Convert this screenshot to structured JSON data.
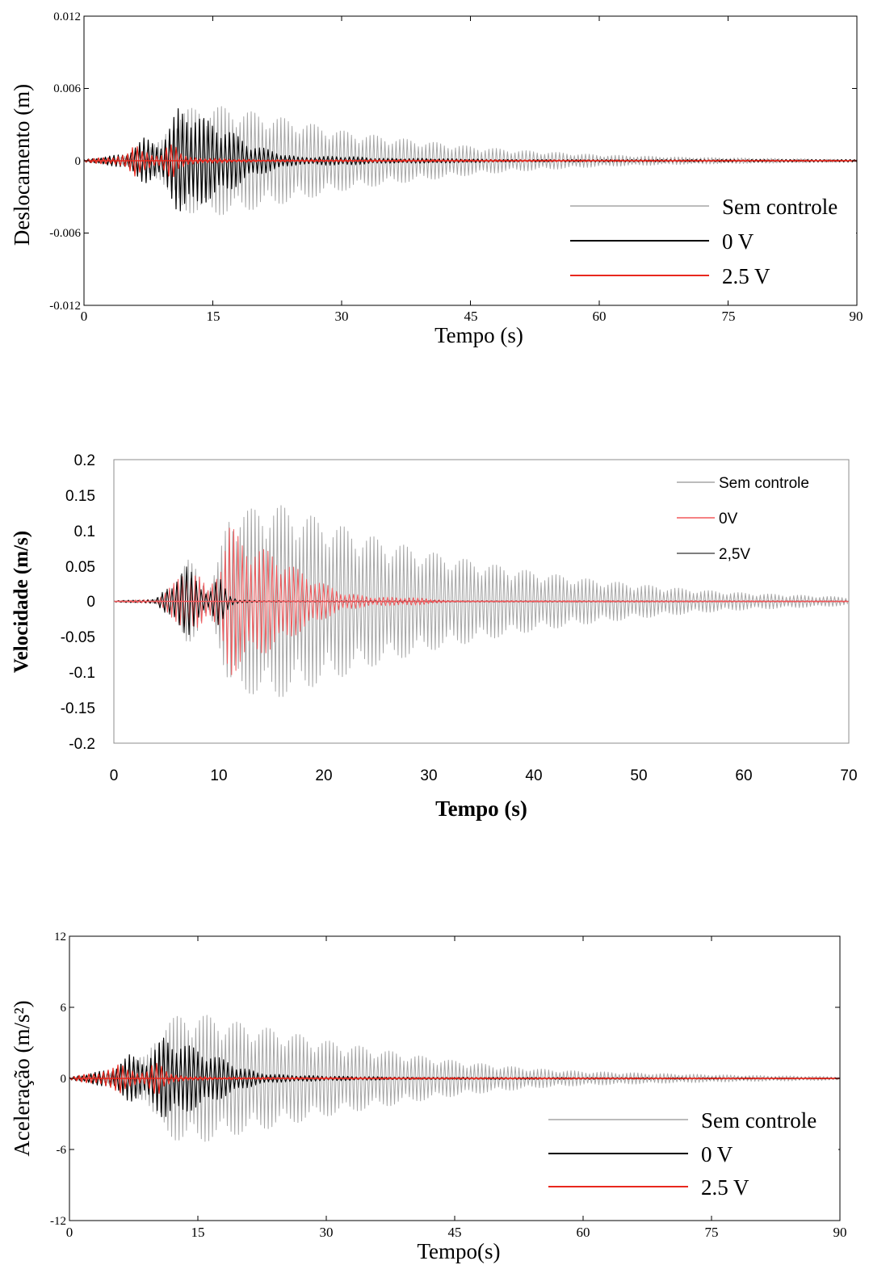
{
  "colors": {
    "sem_controle": "#a6a6a6",
    "zero_v": "#000000",
    "red": "#e8281e",
    "vel_red": "#f2585b"
  },
  "chart_data": [
    {
      "type": "line",
      "xlabel": "Tempo (s)",
      "ylabel": "Deslocamento (m)",
      "xlim": [
        0,
        90
      ],
      "ylim": [
        -0.012,
        0.012
      ],
      "x_ticks": [
        "0",
        "15",
        "30",
        "45",
        "60",
        "75",
        "90"
      ],
      "y_ticks": [
        "0.012",
        "0.006",
        "0",
        "-0.006",
        "-0.012"
      ],
      "legend_position": "bottom-right",
      "series": [
        {
          "name": "Sem controle",
          "color": "#a6a6a6",
          "x": [
            0,
            5,
            7,
            9,
            10,
            11,
            13,
            15,
            18,
            20,
            25,
            30,
            35,
            40,
            45,
            50,
            55,
            60,
            70,
            80,
            90
          ],
          "amplitude": [
            0.0001,
            0.0004,
            0.0012,
            0.0016,
            0.003,
            0.0042,
            0.0044,
            0.0046,
            0.0043,
            0.004,
            0.0033,
            0.0025,
            0.002,
            0.0016,
            0.0012,
            0.0009,
            0.0007,
            0.0005,
            0.0003,
            0.0002,
            0.0001
          ]
        },
        {
          "name": "0 V",
          "color": "#000000",
          "x": [
            0,
            5,
            7,
            9,
            10,
            11,
            12,
            13,
            15,
            17,
            19,
            22,
            25,
            30,
            35,
            40,
            50,
            90
          ],
          "amplitude": [
            0.0001,
            0.0006,
            0.0019,
            0.0014,
            0.0028,
            0.0045,
            0.0043,
            0.0038,
            0.0032,
            0.0025,
            0.0015,
            0.0008,
            0.0003,
            0.0004,
            0.0002,
            0.0002,
            0.0001,
            0.0001
          ]
        },
        {
          "name": "2.5 V",
          "color": "#e8281e",
          "x": [
            0,
            5,
            6,
            7,
            8,
            9,
            10,
            10.5,
            11,
            12,
            15,
            20,
            30,
            90
          ],
          "amplitude": [
            0.0001,
            0.0005,
            0.0015,
            0.0011,
            0.0004,
            0.0004,
            0.0018,
            0.0021,
            0.0008,
            0.0003,
            0.0002,
            0.0001,
            0.0001,
            5e-05
          ]
        }
      ]
    },
    {
      "type": "line",
      "xlabel": "Tempo (s)",
      "ylabel": "Velocidade (m/s)",
      "xlim": [
        0,
        70
      ],
      "ylim": [
        -0.2,
        0.2
      ],
      "x_ticks": [
        "0",
        "10",
        "20",
        "30",
        "40",
        "50",
        "60",
        "70"
      ],
      "y_ticks": [
        "0.2",
        "0.15",
        "0.1",
        "0.05",
        "0",
        "-0.05",
        "-0.1",
        "-0.15",
        "-0.2"
      ],
      "legend_position": "top-right",
      "series": [
        {
          "name": "Sem controle",
          "color": "#a6a6a6",
          "x": [
            0,
            4,
            5,
            6,
            7,
            8,
            9,
            10,
            11,
            12,
            13,
            15,
            17,
            20,
            25,
            30,
            35,
            40,
            45,
            50,
            55,
            60,
            65,
            70
          ],
          "amplitude": [
            0.001,
            0.003,
            0.015,
            0.035,
            0.06,
            0.045,
            0.015,
            0.06,
            0.13,
            0.135,
            0.13,
            0.14,
            0.13,
            0.115,
            0.09,
            0.07,
            0.055,
            0.042,
            0.032,
            0.024,
            0.017,
            0.012,
            0.009,
            0.006
          ]
        },
        {
          "name": "0V",
          "color": "#f2585b",
          "x": [
            0,
            4,
            5,
            6,
            7,
            8,
            9,
            10,
            11,
            12,
            13,
            15,
            17,
            20,
            22,
            25,
            28,
            30,
            32,
            35,
            70
          ],
          "amplitude": [
            0.001,
            0.003,
            0.015,
            0.03,
            0.05,
            0.04,
            0.015,
            0.05,
            0.11,
            0.09,
            0.08,
            0.07,
            0.05,
            0.025,
            0.012,
            0.006,
            0.006,
            0.004,
            0.001,
            0.001,
            0.001
          ]
        },
        {
          "name": "2,5V",
          "color": "#000000",
          "x": [
            0,
            4,
            5,
            6,
            7,
            8,
            9,
            10,
            11,
            12,
            15,
            70
          ],
          "amplitude": [
            0.001,
            0.003,
            0.02,
            0.035,
            0.05,
            0.03,
            0.01,
            0.035,
            0.01,
            0.002,
            0.001,
            0.0005
          ]
        }
      ]
    },
    {
      "type": "line",
      "xlabel": "Tempo(s)",
      "ylabel": "Aceleração (m/s²)",
      "xlim": [
        0,
        90
      ],
      "ylim": [
        -12,
        12
      ],
      "x_ticks": [
        "0",
        "15",
        "30",
        "45",
        "60",
        "75",
        "90"
      ],
      "y_ticks": [
        "12",
        "6",
        "0",
        "-6",
        "-12"
      ],
      "legend_position": "bottom-right",
      "series": [
        {
          "name": "Sem controle",
          "color": "#a6a6a6",
          "x": [
            0,
            5,
            7,
            9,
            10,
            11,
            13,
            15,
            18,
            20,
            25,
            30,
            35,
            40,
            45,
            50,
            55,
            60,
            70,
            80,
            90
          ],
          "amplitude": [
            0.1,
            0.5,
            2.0,
            1.8,
            3.5,
            5.0,
            5.3,
            5.5,
            5.0,
            4.7,
            4.0,
            3.2,
            2.6,
            2.0,
            1.5,
            1.1,
            0.8,
            0.6,
            0.4,
            0.25,
            0.15
          ]
        },
        {
          "name": "0 V",
          "color": "#000000",
          "x": [
            0,
            5,
            7,
            9,
            10,
            11,
            12,
            13,
            15,
            18,
            20,
            22,
            25,
            30,
            35,
            40,
            90
          ],
          "amplitude": [
            0.1,
            0.8,
            2.0,
            1.5,
            2.5,
            3.5,
            3.3,
            3.0,
            2.5,
            1.6,
            1.0,
            0.5,
            0.3,
            0.2,
            0.15,
            0.1,
            0.05
          ]
        },
        {
          "name": "2.5 V",
          "color": "#e8281e",
          "x": [
            0,
            5,
            6,
            7,
            8,
            9,
            10,
            10.5,
            11,
            12,
            15,
            20,
            90
          ],
          "amplitude": [
            0.1,
            0.8,
            1.4,
            1.0,
            0.4,
            0.5,
            1.7,
            2.0,
            0.8,
            0.3,
            0.15,
            0.1,
            0.05
          ]
        }
      ]
    }
  ]
}
